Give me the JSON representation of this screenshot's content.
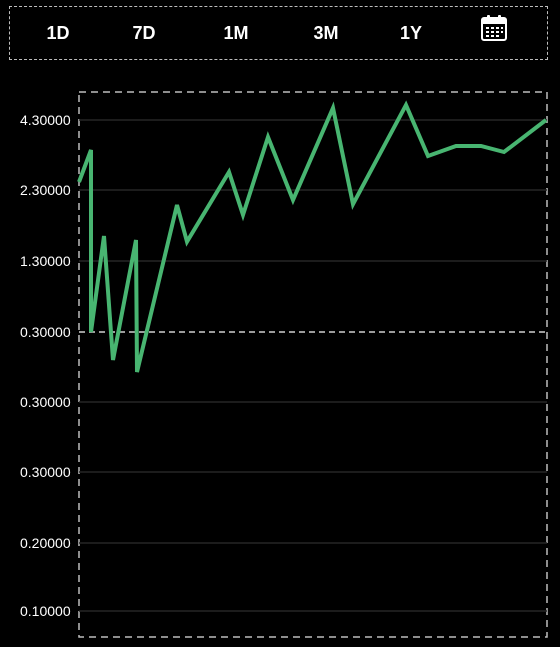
{
  "tabs": [
    {
      "label": "1D"
    },
    {
      "label": "7D"
    },
    {
      "label": "1M"
    },
    {
      "label": "3M"
    },
    {
      "label": "1Y"
    }
  ],
  "calendar_icon": "calendar-icon",
  "colors": {
    "line": "#48b571",
    "background": "#000000",
    "border": "#bdbdbd",
    "grid": "#262626"
  },
  "chart_data": {
    "type": "line",
    "title": "",
    "xlabel": "",
    "ylabel": "",
    "grid": true,
    "y_tick_labels": [
      "4.30000",
      "2.30000",
      "1.30000",
      "0.30000",
      "0.30000",
      "0.30000",
      "0.20000",
      "0.10000"
    ],
    "reference_line": {
      "label_index": 3,
      "style": "dashed"
    },
    "series": [
      {
        "values": [
          2.5,
          3.45,
          0.3,
          1.65,
          0.2,
          1.5,
          0.1,
          0.9,
          1.9,
          1.48,
          2.6,
          1.82,
          2.95,
          2.2,
          4.1,
          1.95,
          3.05,
          4.25,
          3.65,
          3.75,
          3.7,
          3.75,
          3.7,
          4.2
        ]
      }
    ]
  }
}
